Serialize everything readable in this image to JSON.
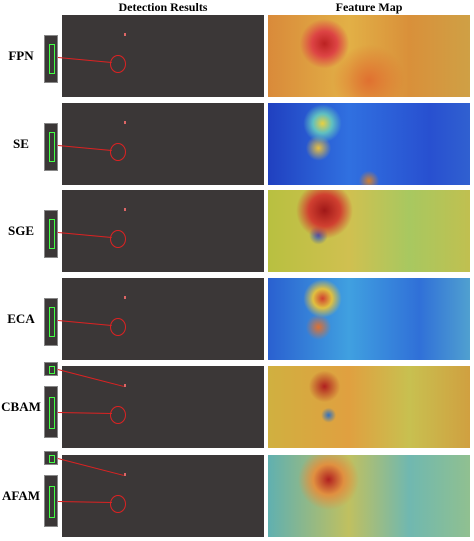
{
  "header": {
    "detection": "Detection Results",
    "feature": "Feature Map"
  },
  "rows": [
    {
      "label": "FPN"
    },
    {
      "label": "SE"
    },
    {
      "label": "SGE"
    },
    {
      "label": "ECA"
    },
    {
      "label": "CBAM"
    },
    {
      "label": "AFAM"
    }
  ]
}
